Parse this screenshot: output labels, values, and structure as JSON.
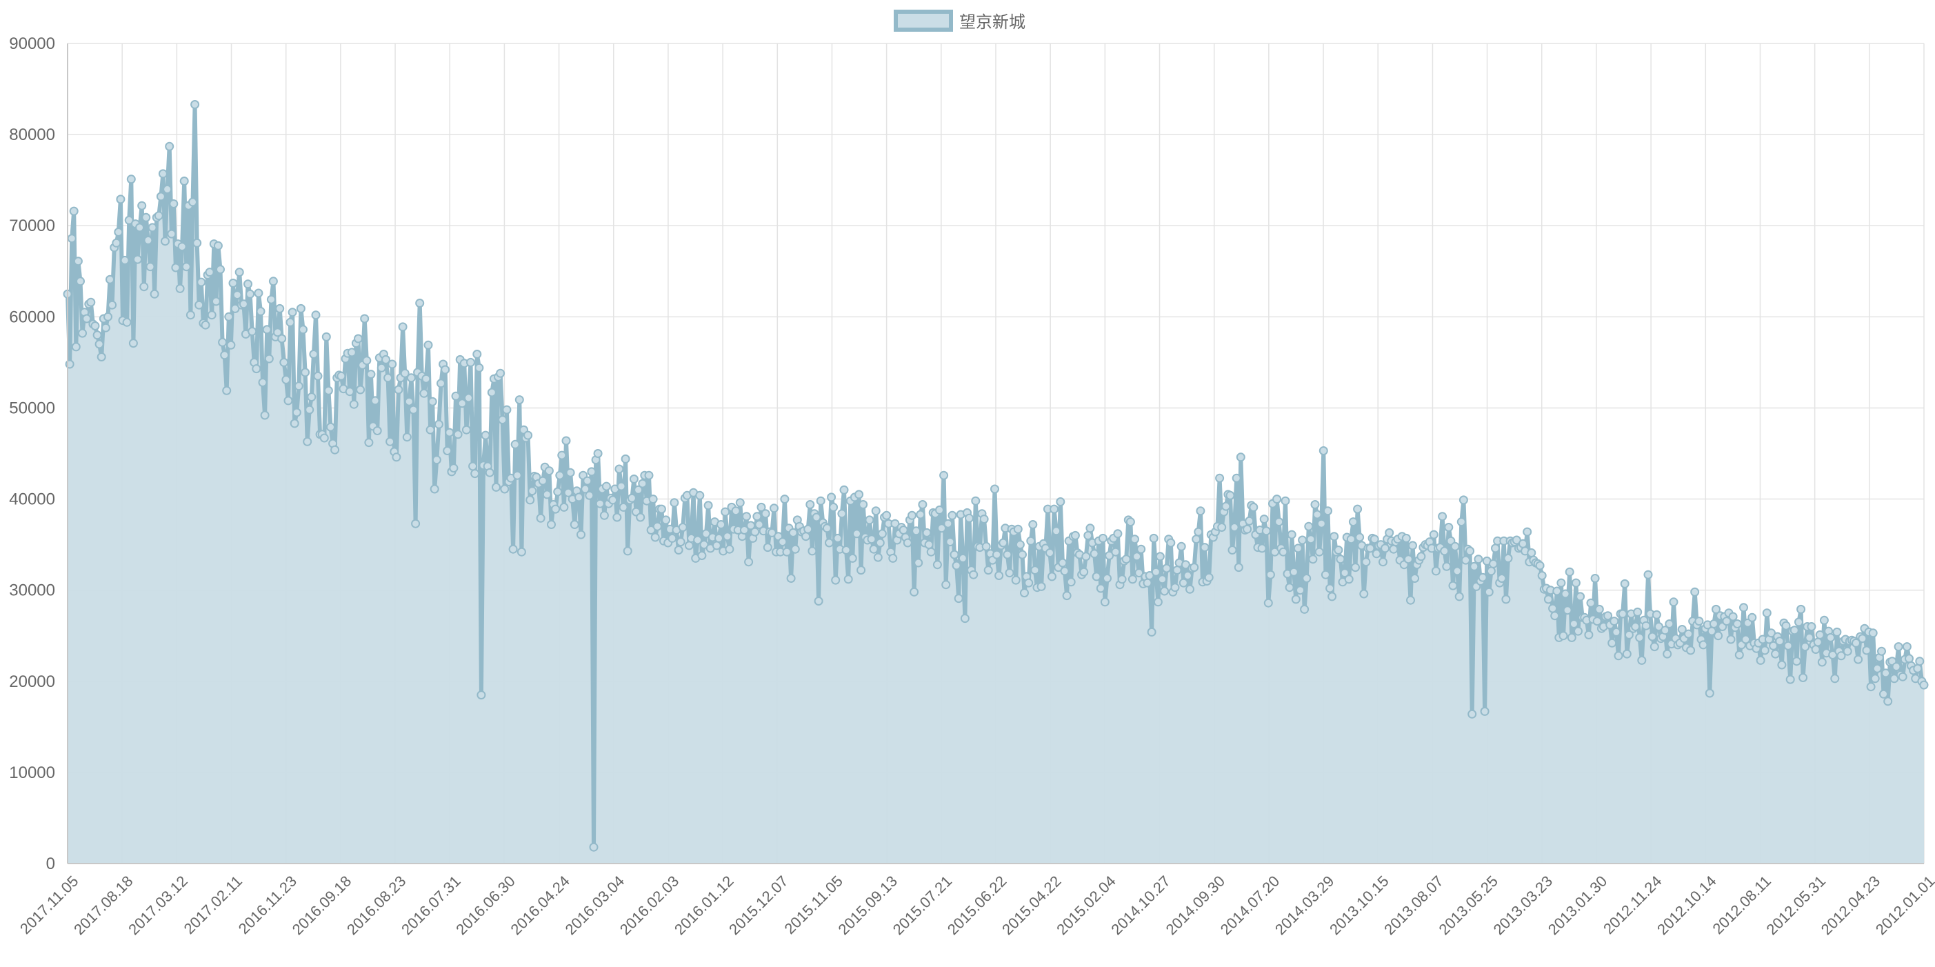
{
  "chart_data": {
    "type": "line",
    "fill": true,
    "series": [
      {
        "name": "望京新城",
        "color": "#93b9c9",
        "fill_color": "#cadde6",
        "values": [
          62500,
          54800,
          68600,
          71600,
          56700,
          66100,
          63900,
          58200,
          60500,
          59800,
          61400,
          61600,
          59200,
          59000,
          58000,
          57000,
          55600,
          59800,
          58800,
          60000,
          64100,
          61300,
          67600,
          68100,
          69300,
          72900,
          59600,
          66200,
          59400,
          70600,
          75100,
          57100,
          70200,
          66300,
          69800,
          72200,
          63300,
          70900,
          68400,
          65500,
          69800,
          62500,
          70900,
          71100,
          73200,
          75700,
          68300,
          74000,
          78700,
          69100,
          72400,
          65400,
          68000,
          63100,
          67700,
          74900,
          65500,
          72200,
          60200,
          72600,
          83300,
          68100,
          61300,
          63800,
          59300,
          59100,
          64600,
          64900,
          60200,
          68000,
          61700,
          67800,
          65200,
          57200,
          55800,
          51900,
          60000,
          56900,
          63700,
          60900,
          62400,
          64900,
          61300,
          61400,
          58100,
          63600,
          62500,
          58400,
          55000,
          54300,
          62600,
          60600,
          52800,
          49200,
          58600,
          55400,
          61900,
          63900,
          57800,
          58300,
          60900,
          57600,
          55000,
          53100,
          50800,
          59400,
          60500,
          48300,
          49500,
          52400,
          60900,
          58600,
          53900,
          46300,
          49800,
          51200,
          55900,
          60200,
          53500,
          47100,
          47100,
          46700,
          57800,
          51900,
          47900,
          46100,
          45400,
          53300,
          53600,
          53500,
          52100,
          55400,
          56000,
          51800,
          56100,
          50400,
          57100,
          57600,
          52000,
          54700,
          59800,
          55200,
          46200,
          53700,
          48000,
          50800,
          47500,
          55500,
          54400,
          55900,
          55300,
          53300,
          46300,
          54800,
          45200,
          44600,
          52000,
          53300,
          58900,
          53800,
          46800,
          50700,
          53300,
          49800,
          37300,
          53900,
          61500,
          53500,
          51600,
          53200,
          56900,
          47600,
          50700,
          41100,
          44300,
          48200,
          52700,
          54800,
          54200,
          45300,
          47300,
          43000,
          43400,
          51300,
          47100,
          55300,
          50500,
          54900,
          47600,
          51100,
          55000,
          43600,
          42800,
          55900,
          54400,
          18500,
          43700,
          47000,
          43600,
          42900,
          51700,
          53200,
          41300,
          53400,
          53800,
          48700,
          41100,
          49800,
          41900,
          42300,
          34500,
          46000,
          42600,
          50900,
          34200,
          47600,
          46700,
          47000,
          39900,
          40900,
          42500,
          42400,
          41700,
          37900,
          42000,
          43500,
          40500,
          43100,
          37200,
          39400,
          38900,
          40800,
          42600,
          44800,
          39100,
          46400,
          40700,
          42900,
          40000,
          37200,
          40900,
          40200,
          36100,
          42600,
          41100,
          42000,
          40400,
          43000,
          1800,
          44300,
          45000,
          39500,
          41100,
          38200,
          41400,
          39500,
          40100,
          39900,
          41100,
          38000,
          43300,
          41400,
          39100,
          44400,
          34300,
          39900,
          40100,
          42200,
          38600,
          41000,
          38000,
          41700,
          42600,
          39800,
          42600,
          36600,
          40000,
          35800,
          37000,
          38900,
          38900,
          35400,
          37700,
          35200,
          36700,
          35700,
          39600,
          36600,
          34400,
          35300,
          36900,
          40100,
          40400,
          34900,
          35700,
          40700,
          33500,
          35500,
          40400,
          33800,
          35000,
          36200,
          39300,
          34600,
          35800,
          37500,
          34900,
          35700,
          37200,
          34300,
          38600,
          35900,
          34500,
          39100,
          36700,
          38700,
          36600,
          39600,
          35900,
          36600,
          38100,
          33100,
          37100,
          35700,
          36400,
          38100,
          37200,
          39100,
          36500,
          38400,
          34700,
          36400,
          36300,
          39000,
          34200,
          35900,
          34200,
          35300,
          40000,
          34200,
          36800,
          31300,
          36300,
          34500,
          37700,
          37000,
          36400,
          36500,
          35900,
          36700,
          39400,
          34300,
          38400,
          38000,
          28800,
          39800,
          37400,
          37000,
          36800,
          35200,
          40200,
          39100,
          31100,
          35700,
          34500,
          38400,
          41000,
          34400,
          31200,
          39800,
          33500,
          40200,
          36200,
          40500,
          32200,
          39400,
          35800,
          35500,
          37700,
          35600,
          34500,
          38700,
          33600,
          35200,
          36200,
          38000,
          38200,
          37300,
          34200,
          33500,
          37300,
          35500,
          36200,
          36900,
          36600,
          35800,
          35200,
          37700,
          38200,
          29800,
          36500,
          33000,
          38300,
          39400,
          35200,
          36300,
          35000,
          34200,
          38500,
          38400,
          32800,
          38800,
          36800,
          42600,
          30600,
          37300,
          35300,
          38200,
          33900,
          32700,
          29100,
          38300,
          33500,
          26900,
          38500,
          37900,
          32200,
          31700,
          39800,
          34800,
          34700,
          38400,
          37800,
          34800,
          32200,
          34000,
          33300,
          41100,
          33900,
          31600,
          34900,
          35200,
          36800,
          33900,
          31900,
          36700,
          36400,
          31100,
          36700,
          35000,
          33900,
          29700,
          31500,
          30800,
          35400,
          37200,
          32200,
          30300,
          34800,
          30400,
          35100,
          34600,
          38900,
          34100,
          31500,
          38900,
          36500,
          32500,
          39700,
          33000,
          32100,
          29400,
          35400,
          30900,
          35900,
          36000,
          34100,
          33900,
          31700,
          32000,
          33700,
          36000,
          36800,
          35200,
          34000,
          31500,
          35400,
          30200,
          35700,
          28700,
          31300,
          33800,
          35400,
          35700,
          34200,
          36200,
          30600,
          31200,
          33200,
          33400,
          37700,
          37500,
          31200,
          35600,
          33700,
          31900,
          34500,
          30700,
          31500,
          30800,
          31600,
          25400,
          35700,
          32000,
          28700,
          33700,
          31200,
          29900,
          32400,
          35600,
          35200,
          29800,
          30300,
          32200,
          33000,
          34800,
          30800,
          32800,
          31600,
          30100,
          32400,
          32500,
          35600,
          36400,
          38700,
          30900,
          34700,
          31000,
          31400,
          36100,
          35800,
          36400,
          37000,
          42300,
          36900,
          38600,
          39200,
          40500,
          40400,
          34400,
          36900,
          42300,
          32500,
          44600,
          37300,
          36600,
          36700,
          37600,
          39300,
          39100,
          36100,
          34700,
          36600,
          34600,
          37800,
          36500,
          28600,
          31700,
          39500,
          34200,
          40000,
          37500,
          34600,
          34200,
          39800,
          31800,
          30300,
          36100,
          32000,
          29000,
          34600,
          30000,
          35500,
          27900,
          31300,
          37000,
          35600,
          33400,
          39400,
          38300,
          34200,
          37300,
          45300,
          31700,
          38700,
          30200,
          29300,
          35900,
          34200,
          34400,
          33400,
          30900,
          31900,
          35800,
          31200,
          35600,
          37500,
          32500,
          38900,
          35800,
          34900,
          29600,
          33100,
          34600,
          34600,
          35700,
          35600,
          34000,
          34900,
          35000,
          33100,
          34600,
          35600,
          36300,
          35400,
          34500,
          35300,
          35600,
          33300,
          35900,
          32800,
          35700,
          33400,
          28900,
          34900,
          31300,
          32800,
          33300,
          33700,
          34700,
          35000,
          34900,
          35300,
          34600,
          36100,
          32100,
          34600,
          34700,
          38100,
          34300,
          32600,
          36900,
          35400,
          30500,
          34800,
          32100,
          29300,
          37500,
          39900,
          33300,
          34500,
          34300,
          16400,
          32600,
          30400,
          33400,
          31000,
          31400,
          16700,
          33200,
          29800,
          32100,
          32900,
          34600,
          35400,
          30800,
          31300,
          35400,
          29000,
          33500,
          35400,
          35200,
          35300,
          35500,
          34600,
          34700,
          35100,
          34300,
          36400,
          33100,
          34100,
          33300,
          33000,
          32900,
          32700,
          31600,
          30100,
          30200,
          29000,
          30000,
          28000,
          27200,
          29900,
          24800,
          30800,
          25000,
          29600,
          27800,
          32000,
          24800,
          26300,
          30800,
          25500,
          29300,
          27000,
          27000,
          26700,
          25100,
          28600,
          26800,
          31300,
          26600,
          27900,
          25800,
          26000,
          27100,
          27200,
          26200,
          24200,
          26600,
          25400,
          22800,
          27400,
          27400,
          30700,
          23000,
          25100,
          27400,
          25800,
          26000,
          27600,
          24800,
          22300,
          26700,
          26100,
          31700,
          27400,
          24900,
          23800,
          27300,
          26000,
          24700,
          24900,
          25600,
          23000,
          26300,
          24100,
          28700,
          24700,
          24000,
          24200,
          25700,
          24700,
          23700,
          25200,
          23400,
          26600,
          29800,
          26200,
          26600,
          24600,
          24000,
          25800,
          26200,
          18700,
          25500,
          26300,
          27900,
          25000,
          27200,
          26000,
          27100,
          26600,
          27500,
          24600,
          27100,
          25900,
          26300,
          22900,
          24000,
          28100,
          24600,
          26400,
          23900,
          27000,
          24200,
          23600,
          24200,
          22300,
          24600,
          23400,
          27500,
          24600,
          25300,
          23900,
          23000,
          24900,
          24400,
          21800,
          26400,
          26100,
          23900,
          20200,
          25500,
          25600,
          22200,
          26500,
          27900,
          20400,
          23800,
          26000,
          24800,
          26000,
          24000,
          23500,
          24300,
          25100,
          22100,
          26700,
          23100,
          25500,
          24800,
          22900,
          20300,
          25400,
          23300,
          22800,
          24400,
          24600,
          23300,
          24400,
          24500,
          24400,
          24200,
          22400,
          24900,
          24700,
          25800,
          23400,
          25400,
          19400,
          25300,
          20300,
          21400,
          22600,
          23300,
          18600,
          20900,
          17800,
          22100,
          22200,
          20300,
          21600,
          23800,
          20700,
          20500,
          22400,
          23800,
          22500,
          21700,
          21200,
          20300,
          21400,
          22200,
          20000,
          19600
        ]
      }
    ],
    "x_tick_labels": [
      "2017.11.05",
      "2017.08.18",
      "2017.03.12",
      "2017.02.11",
      "2016.11.23",
      "2016.09.18",
      "2016.08.23",
      "2016.07.31",
      "2016.06.30",
      "2016.04.24",
      "2016.03.04",
      "2016.02.03",
      "2016.01.12",
      "2015.12.07",
      "2015.11.05",
      "2015.09.13",
      "2015.07.21",
      "2015.06.22",
      "2015.04.22",
      "2015.02.04",
      "2014.10.27",
      "2014.09.30",
      "2014.07.20",
      "2014.03.29",
      "2013.10.15",
      "2013.08.07",
      "2013.05.25",
      "2013.03.23",
      "2013.01.30",
      "2012.11.24",
      "2012.10.14",
      "2012.08.11",
      "2012.05.31",
      "2012.04.23",
      "2012.01.01"
    ],
    "y_ticks": [
      0,
      10000,
      20000,
      30000,
      40000,
      50000,
      60000,
      70000,
      80000,
      90000
    ],
    "ylim": [
      0,
      90000
    ],
    "grid": true,
    "legend_position": "top-center",
    "title": "",
    "xlabel": "",
    "ylabel": ""
  }
}
